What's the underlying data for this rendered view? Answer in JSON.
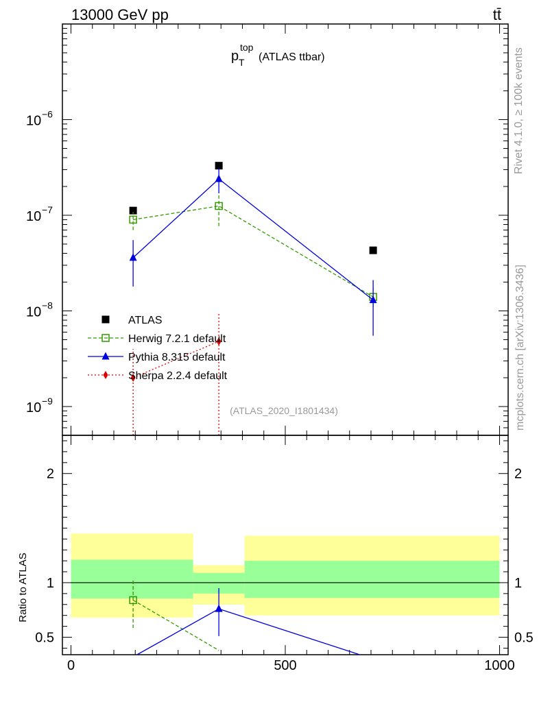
{
  "header": {
    "left": "13000 GeV pp",
    "right": "tt̄"
  },
  "side_labels": {
    "rivet": "Rivet 4.1.0, ≥ 100k events",
    "mcplots": "mcplots.cern.ch [arXiv:1306.3436]"
  },
  "watermark": "(ATLAS_2020_I1801434)",
  "plot_title": {
    "main": "p",
    "sup": "top",
    "sub": "T",
    "rest": "(ATLAS ttbar)"
  },
  "colors": {
    "atlas": "#000000",
    "herwig": "#339900",
    "pythia": "#0000dd",
    "sherpa": "#dd0000",
    "band_inner": "#99ff99",
    "band_outer": "#ffff99"
  },
  "chart_data": [
    {
      "type": "scatter",
      "panel": "main",
      "yscale": "log",
      "ylim": [
        5e-10,
        1e-05
      ],
      "xlim": [
        -20,
        1020
      ],
      "yticks": [
        {
          "value": 1e-09,
          "base": "10",
          "exp": "−9"
        },
        {
          "value": 1e-08,
          "base": "10",
          "exp": "−8"
        },
        {
          "value": 1e-07,
          "base": "10",
          "exp": "−7"
        },
        {
          "value": 1e-06,
          "base": "10",
          "exp": "−6"
        }
      ],
      "series": [
        {
          "name": "ATLAS",
          "key": "atlas",
          "x": [
            145,
            345,
            705
          ],
          "y": [
            1.12e-07,
            3.3e-07,
            4.3e-08
          ]
        },
        {
          "name": "Herwig 7.2.1 default",
          "key": "herwig",
          "x": [
            145,
            345,
            705
          ],
          "y": [
            9e-08,
            1.25e-07,
            1.4e-08
          ],
          "ylo": [
            7e-08,
            7.7e-08,
            1.1e-08
          ],
          "yhi": [
            1.08e-07,
            1.75e-07,
            1.75e-08
          ]
        },
        {
          "name": "Pythia 8.315 default",
          "key": "pythia",
          "x": [
            145,
            345,
            705
          ],
          "y": [
            3.6e-08,
            2.4e-07,
            1.3e-08
          ],
          "ylo": [
            1.8e-08,
            1.7e-07,
            5.5e-09
          ],
          "yhi": [
            5.5e-08,
            3.1e-07,
            2.1e-08
          ]
        },
        {
          "name": "Sherpa 2.2.4 default",
          "key": "sherpa",
          "x": [
            145,
            345
          ],
          "y": [
            2e-09,
            4.8e-09
          ],
          "ylo": [
            1e-12,
            1e-12
          ],
          "yhi": [
            4e-09,
            9.5e-09
          ]
        }
      ]
    },
    {
      "type": "line",
      "panel": "ratio",
      "ylabel": "Ratio to ATLAS",
      "ylim": [
        0.34,
        2.35
      ],
      "xlim": [
        -20,
        1020
      ],
      "yticks": [
        {
          "value": 0.5,
          "label": "0.5"
        },
        {
          "value": 1,
          "label": "1"
        },
        {
          "value": 2,
          "label": "2"
        }
      ],
      "xticks": [
        {
          "value": 0,
          "label": "0"
        },
        {
          "value": 500,
          "label": "500"
        },
        {
          "value": 1000,
          "label": "1000"
        }
      ],
      "bins": [
        {
          "x0": 0,
          "x1": 285,
          "inner": [
            0.855,
            1.21
          ],
          "outer": [
            0.68,
            1.45
          ]
        },
        {
          "x0": 285,
          "x1": 405,
          "inner": [
            0.8,
            1.09
          ],
          "outer": [
            0.8,
            1.09
          ],
          "inner2": [
            0.9,
            1.09
          ],
          "outer2": [
            0.8,
            1.16
          ]
        },
        {
          "x0": 405,
          "x1": 1000,
          "inner": [
            0.86,
            1.2
          ],
          "outer": [
            0.7,
            1.43
          ]
        }
      ],
      "series": [
        {
          "name": "Herwig 7.2.1 default",
          "key": "herwig",
          "x": [
            145,
            345
          ],
          "y": [
            0.84,
            0.38
          ],
          "ylo": [
            0.585,
            0.3
          ],
          "yhi": [
            1.03,
            0.4
          ],
          "markers": [
            0
          ]
        },
        {
          "name": "Pythia 8.315 default",
          "key": "pythia",
          "x": [
            145,
            345,
            705
          ],
          "y": [
            0.32,
            0.76,
            0.3
          ],
          "ylo": [
            0.3,
            0.51,
            0.3
          ],
          "yhi": [
            0.35,
            0.95,
            0.3
          ],
          "markers": [
            1
          ]
        }
      ]
    }
  ]
}
